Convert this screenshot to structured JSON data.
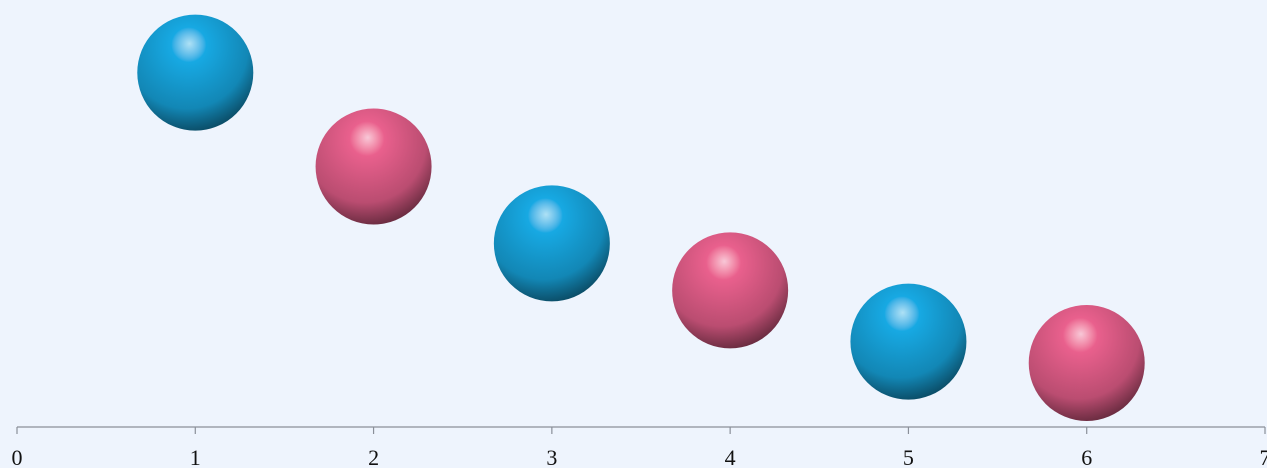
{
  "chart_data": {
    "type": "scatter",
    "x": [
      1,
      2,
      3,
      4,
      5,
      6
    ],
    "values": [
      83,
      61,
      43,
      32,
      20,
      15
    ],
    "colors": [
      "#17a9e3",
      "#e9608d",
      "#17a9e3",
      "#e9608d",
      "#17a9e3",
      "#e9608d"
    ],
    "xlim": [
      0,
      7
    ],
    "xticks": [
      0,
      1,
      2,
      3,
      4,
      5,
      6,
      7
    ],
    "ylim": [
      0,
      100
    ]
  }
}
